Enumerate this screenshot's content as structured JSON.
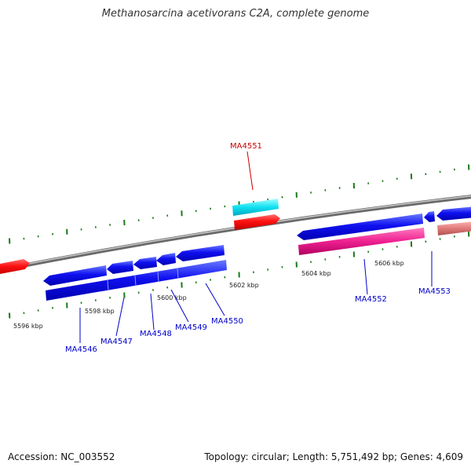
{
  "title": "Methanosarcina acetivorans C2A, complete genome",
  "footer": {
    "accession": "Accession: NC_003552",
    "summary": "Topology: circular; Length: 5,751,492 bp; Genes: 4,609"
  },
  "scale_labels": [
    "5596 kbp",
    "5598 kbp",
    "5600 kbp",
    "5602 kbp",
    "5604 kbp",
    "5606 kbp"
  ],
  "gene_labels": {
    "MA4546": "MA4546",
    "MA4547": "MA4547",
    "MA4548": "MA4548",
    "MA4549": "MA4549",
    "MA4550": "MA4550",
    "MA4551": "MA4551",
    "MA4552": "MA4552",
    "MA4553": "MA4553"
  },
  "colors": {
    "cds": "#0000ee",
    "cds_light": "#4a5cff",
    "rna": "#ff1a1a",
    "cyan": "#18e8f0",
    "pink": "#ee3399",
    "salmon": "#e88080",
    "backbone": "#8a8a8a",
    "tick": "#1a7a1a",
    "label_blue": "#0000cc",
    "label_red": "#cc0000"
  }
}
